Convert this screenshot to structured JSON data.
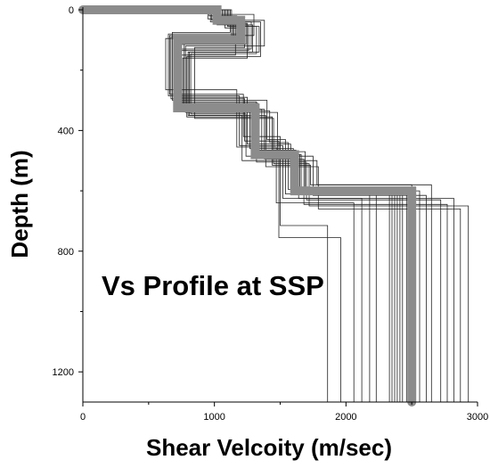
{
  "chart_data": {
    "type": "line",
    "title": "",
    "xlabel": "Shear Velcoity (m/sec)",
    "ylabel": "Depth (m)",
    "xlim": [
      0,
      3000
    ],
    "ylim": [
      0,
      1300
    ],
    "y_inverted": true,
    "grid": false,
    "x_ticks": [
      0,
      1000,
      2000,
      3000
    ],
    "x_tick_labels": [
      "0",
      "1000",
      "2000",
      "3000"
    ],
    "y_ticks": [
      0,
      400,
      800,
      1200
    ],
    "y_tick_labels": [
      "0",
      "400",
      "800",
      "1200"
    ],
    "annotation": "Vs Profile at SSP",
    "series": [
      {
        "role": "mean",
        "color": "#8c8c8c",
        "velocity": [
          0,
          1020,
          1020,
          1200,
          1200,
          720,
          720,
          1310,
          1310,
          1610,
          1610,
          2500,
          2500
        ],
        "depth": [
          0,
          0,
          35,
          35,
          100,
          100,
          325,
          325,
          480,
          480,
          600,
          600,
          1300
        ]
      },
      {
        "role": "realization",
        "color": "#222222",
        "velocity": [
          0,
          1050,
          1050,
          1280,
          1280,
          730,
          730,
          1290,
          1290,
          1690,
          1690,
          2410,
          2410
        ],
        "depth": [
          0,
          0,
          40,
          40,
          130,
          130,
          320,
          320,
          470,
          470,
          600,
          600,
          1300
        ]
      },
      {
        "role": "realization",
        "color": "#222222",
        "velocity": [
          0,
          1000,
          1000,
          1120,
          1120,
          680,
          680,
          1400,
          1400,
          1540,
          1540,
          2180,
          2180
        ],
        "depth": [
          0,
          0,
          20,
          20,
          75,
          75,
          300,
          300,
          430,
          430,
          610,
          610,
          1300
        ]
      },
      {
        "role": "realization",
        "color": "#222222",
        "velocity": [
          0,
          1110,
          1110,
          1340,
          1340,
          800,
          800,
          1210,
          1210,
          1780,
          1780,
          2650,
          2650
        ],
        "depth": [
          0,
          0,
          55,
          55,
          140,
          140,
          350,
          350,
          500,
          500,
          580,
          580,
          1300
        ]
      },
      {
        "role": "realization",
        "color": "#222222",
        "velocity": [
          0,
          950,
          950,
          1150,
          1150,
          630,
          630,
          1170,
          1170,
          1470,
          1470,
          2060,
          2060
        ],
        "depth": [
          0,
          0,
          30,
          30,
          95,
          95,
          265,
          265,
          455,
          455,
          640,
          640,
          1300
        ]
      },
      {
        "role": "realization",
        "color": "#222222",
        "velocity": [
          0,
          1060,
          1060,
          1250,
          1250,
          760,
          760,
          1360,
          1360,
          1640,
          1640,
          2820,
          2820
        ],
        "depth": [
          0,
          0,
          45,
          45,
          160,
          160,
          330,
          330,
          490,
          490,
          625,
          625,
          1300
        ]
      },
      {
        "role": "realization",
        "color": "#222222",
        "velocity": [
          0,
          990,
          990,
          1180,
          1180,
          700,
          700,
          1250,
          1250,
          1580,
          1580,
          2350,
          2350
        ],
        "depth": [
          0,
          0,
          25,
          25,
          110,
          110,
          290,
          290,
          445,
          445,
          590,
          590,
          1300
        ]
      },
      {
        "role": "realization",
        "color": "#222222",
        "velocity": [
          0,
          1080,
          1080,
          1230,
          1230,
          850,
          850,
          1450,
          1450,
          1720,
          1720,
          2930,
          2930
        ],
        "depth": [
          0,
          0,
          60,
          60,
          125,
          125,
          360,
          360,
          510,
          510,
          650,
          650,
          1300
        ]
      },
      {
        "role": "realization",
        "color": "#222222",
        "velocity": [
          0,
          1040,
          1040,
          1300,
          1300,
          660,
          660,
          1220,
          1220,
          1500,
          1500,
          1860,
          1860
        ],
        "depth": [
          0,
          0,
          15,
          15,
          85,
          85,
          280,
          280,
          420,
          420,
          715,
          715,
          1300
        ]
      },
      {
        "role": "realization",
        "color": "#222222",
        "velocity": [
          0,
          1020,
          1020,
          1160,
          1160,
          740,
          740,
          1330,
          1330,
          1620,
          1620,
          2460,
          2460
        ],
        "depth": [
          0,
          0,
          50,
          50,
          150,
          150,
          310,
          310,
          465,
          465,
          605,
          605,
          1300
        ]
      },
      {
        "role": "realization",
        "color": "#222222",
        "velocity": [
          0,
          1130,
          1130,
          1380,
          1380,
          780,
          780,
          1480,
          1480,
          1660,
          1660,
          2560,
          2560
        ],
        "depth": [
          0,
          0,
          35,
          35,
          120,
          120,
          340,
          340,
          480,
          480,
          600,
          600,
          1300
        ]
      },
      {
        "role": "realization",
        "color": "#222222",
        "velocity": [
          0,
          970,
          970,
          1210,
          1210,
          710,
          710,
          1270,
          1270,
          1600,
          1600,
          2330,
          2330
        ],
        "depth": [
          0,
          0,
          40,
          40,
          105,
          105,
          315,
          315,
          460,
          460,
          590,
          590,
          1300
        ]
      },
      {
        "role": "realization",
        "color": "#222222",
        "velocity": [
          0,
          1030,
          1030,
          1190,
          1190,
          720,
          720,
          1300,
          1300,
          1610,
          1610,
          2390,
          2390
        ],
        "depth": [
          0,
          0,
          35,
          35,
          100,
          100,
          325,
          325,
          480,
          480,
          600,
          600,
          1300
        ]
      },
      {
        "role": "realization",
        "color": "#222222",
        "velocity": [
          0,
          1070,
          1070,
          1260,
          1260,
          690,
          690,
          1320,
          1320,
          1700,
          1700,
          2720,
          2720
        ],
        "depth": [
          0,
          0,
          50,
          50,
          135,
          135,
          305,
          305,
          505,
          505,
          630,
          630,
          1300
        ]
      },
      {
        "role": "realization",
        "color": "#222222",
        "velocity": [
          0,
          1000,
          1000,
          1140,
          1140,
          770,
          770,
          1420,
          1420,
          1560,
          1560,
          2230,
          2230
        ],
        "depth": [
          0,
          0,
          25,
          25,
          90,
          90,
          335,
          335,
          440,
          440,
          595,
          595,
          1300
        ]
      },
      {
        "role": "realization",
        "color": "#222222",
        "velocity": [
          0,
          1100,
          1100,
          1320,
          1320,
          820,
          820,
          1240,
          1240,
          1750,
          1750,
          2610,
          2610
        ],
        "depth": [
          0,
          0,
          55,
          55,
          145,
          145,
          345,
          345,
          485,
          485,
          615,
          615,
          1300
        ]
      },
      {
        "role": "realization",
        "color": "#222222",
        "velocity": [
          0,
          960,
          960,
          1170,
          1170,
          650,
          650,
          1190,
          1190,
          1520,
          1520,
          2120,
          2120
        ],
        "depth": [
          0,
          0,
          20,
          20,
          80,
          80,
          285,
          285,
          450,
          450,
          625,
          625,
          1300
        ]
      },
      {
        "role": "realization",
        "color": "#222222",
        "velocity": [
          0,
          1050,
          1050,
          1240,
          1240,
          750,
          750,
          1380,
          1380,
          1680,
          1680,
          2770,
          2770
        ],
        "depth": [
          0,
          0,
          45,
          45,
          115,
          115,
          330,
          330,
          495,
          495,
          645,
          645,
          1300
        ]
      },
      {
        "role": "realization",
        "color": "#222222",
        "velocity": [
          0,
          1010,
          1010,
          1200,
          1200,
          710,
          710,
          1280,
          1280,
          1630,
          1630,
          2370,
          2370
        ],
        "depth": [
          0,
          0,
          30,
          30,
          100,
          100,
          320,
          320,
          475,
          475,
          600,
          600,
          1300
        ]
      },
      {
        "role": "realization",
        "color": "#222222",
        "velocity": [
          0,
          1090,
          1090,
          1350,
          1350,
          790,
          790,
          1440,
          1440,
          1730,
          1730,
          2500,
          2500
        ],
        "depth": [
          0,
          0,
          40,
          40,
          155,
          155,
          355,
          355,
          515,
          515,
          580,
          580,
          1300
        ]
      },
      {
        "role": "realization",
        "color": "#222222",
        "velocity": [
          0,
          980,
          980,
          1130,
          1130,
          670,
          670,
          1230,
          1230,
          1490,
          1490,
          1960,
          1960
        ],
        "depth": [
          0,
          0,
          35,
          35,
          90,
          90,
          295,
          295,
          435,
          435,
          755,
          755,
          1300
        ]
      },
      {
        "role": "realization",
        "color": "#222222",
        "velocity": [
          0,
          1040,
          1040,
          1220,
          1220,
          730,
          730,
          1340,
          1340,
          1650,
          1650,
          2430,
          2430
        ],
        "depth": [
          0,
          0,
          40,
          40,
          110,
          110,
          325,
          325,
          480,
          480,
          605,
          605,
          1300
        ]
      },
      {
        "role": "realization",
        "color": "#222222",
        "velocity": [
          0,
          1120,
          1120,
          1290,
          1290,
          810,
          810,
          1390,
          1390,
          1790,
          1790,
          2870,
          2870
        ],
        "depth": [
          0,
          0,
          50,
          50,
          140,
          140,
          350,
          350,
          520,
          520,
          660,
          660,
          1300
        ]
      }
    ]
  }
}
